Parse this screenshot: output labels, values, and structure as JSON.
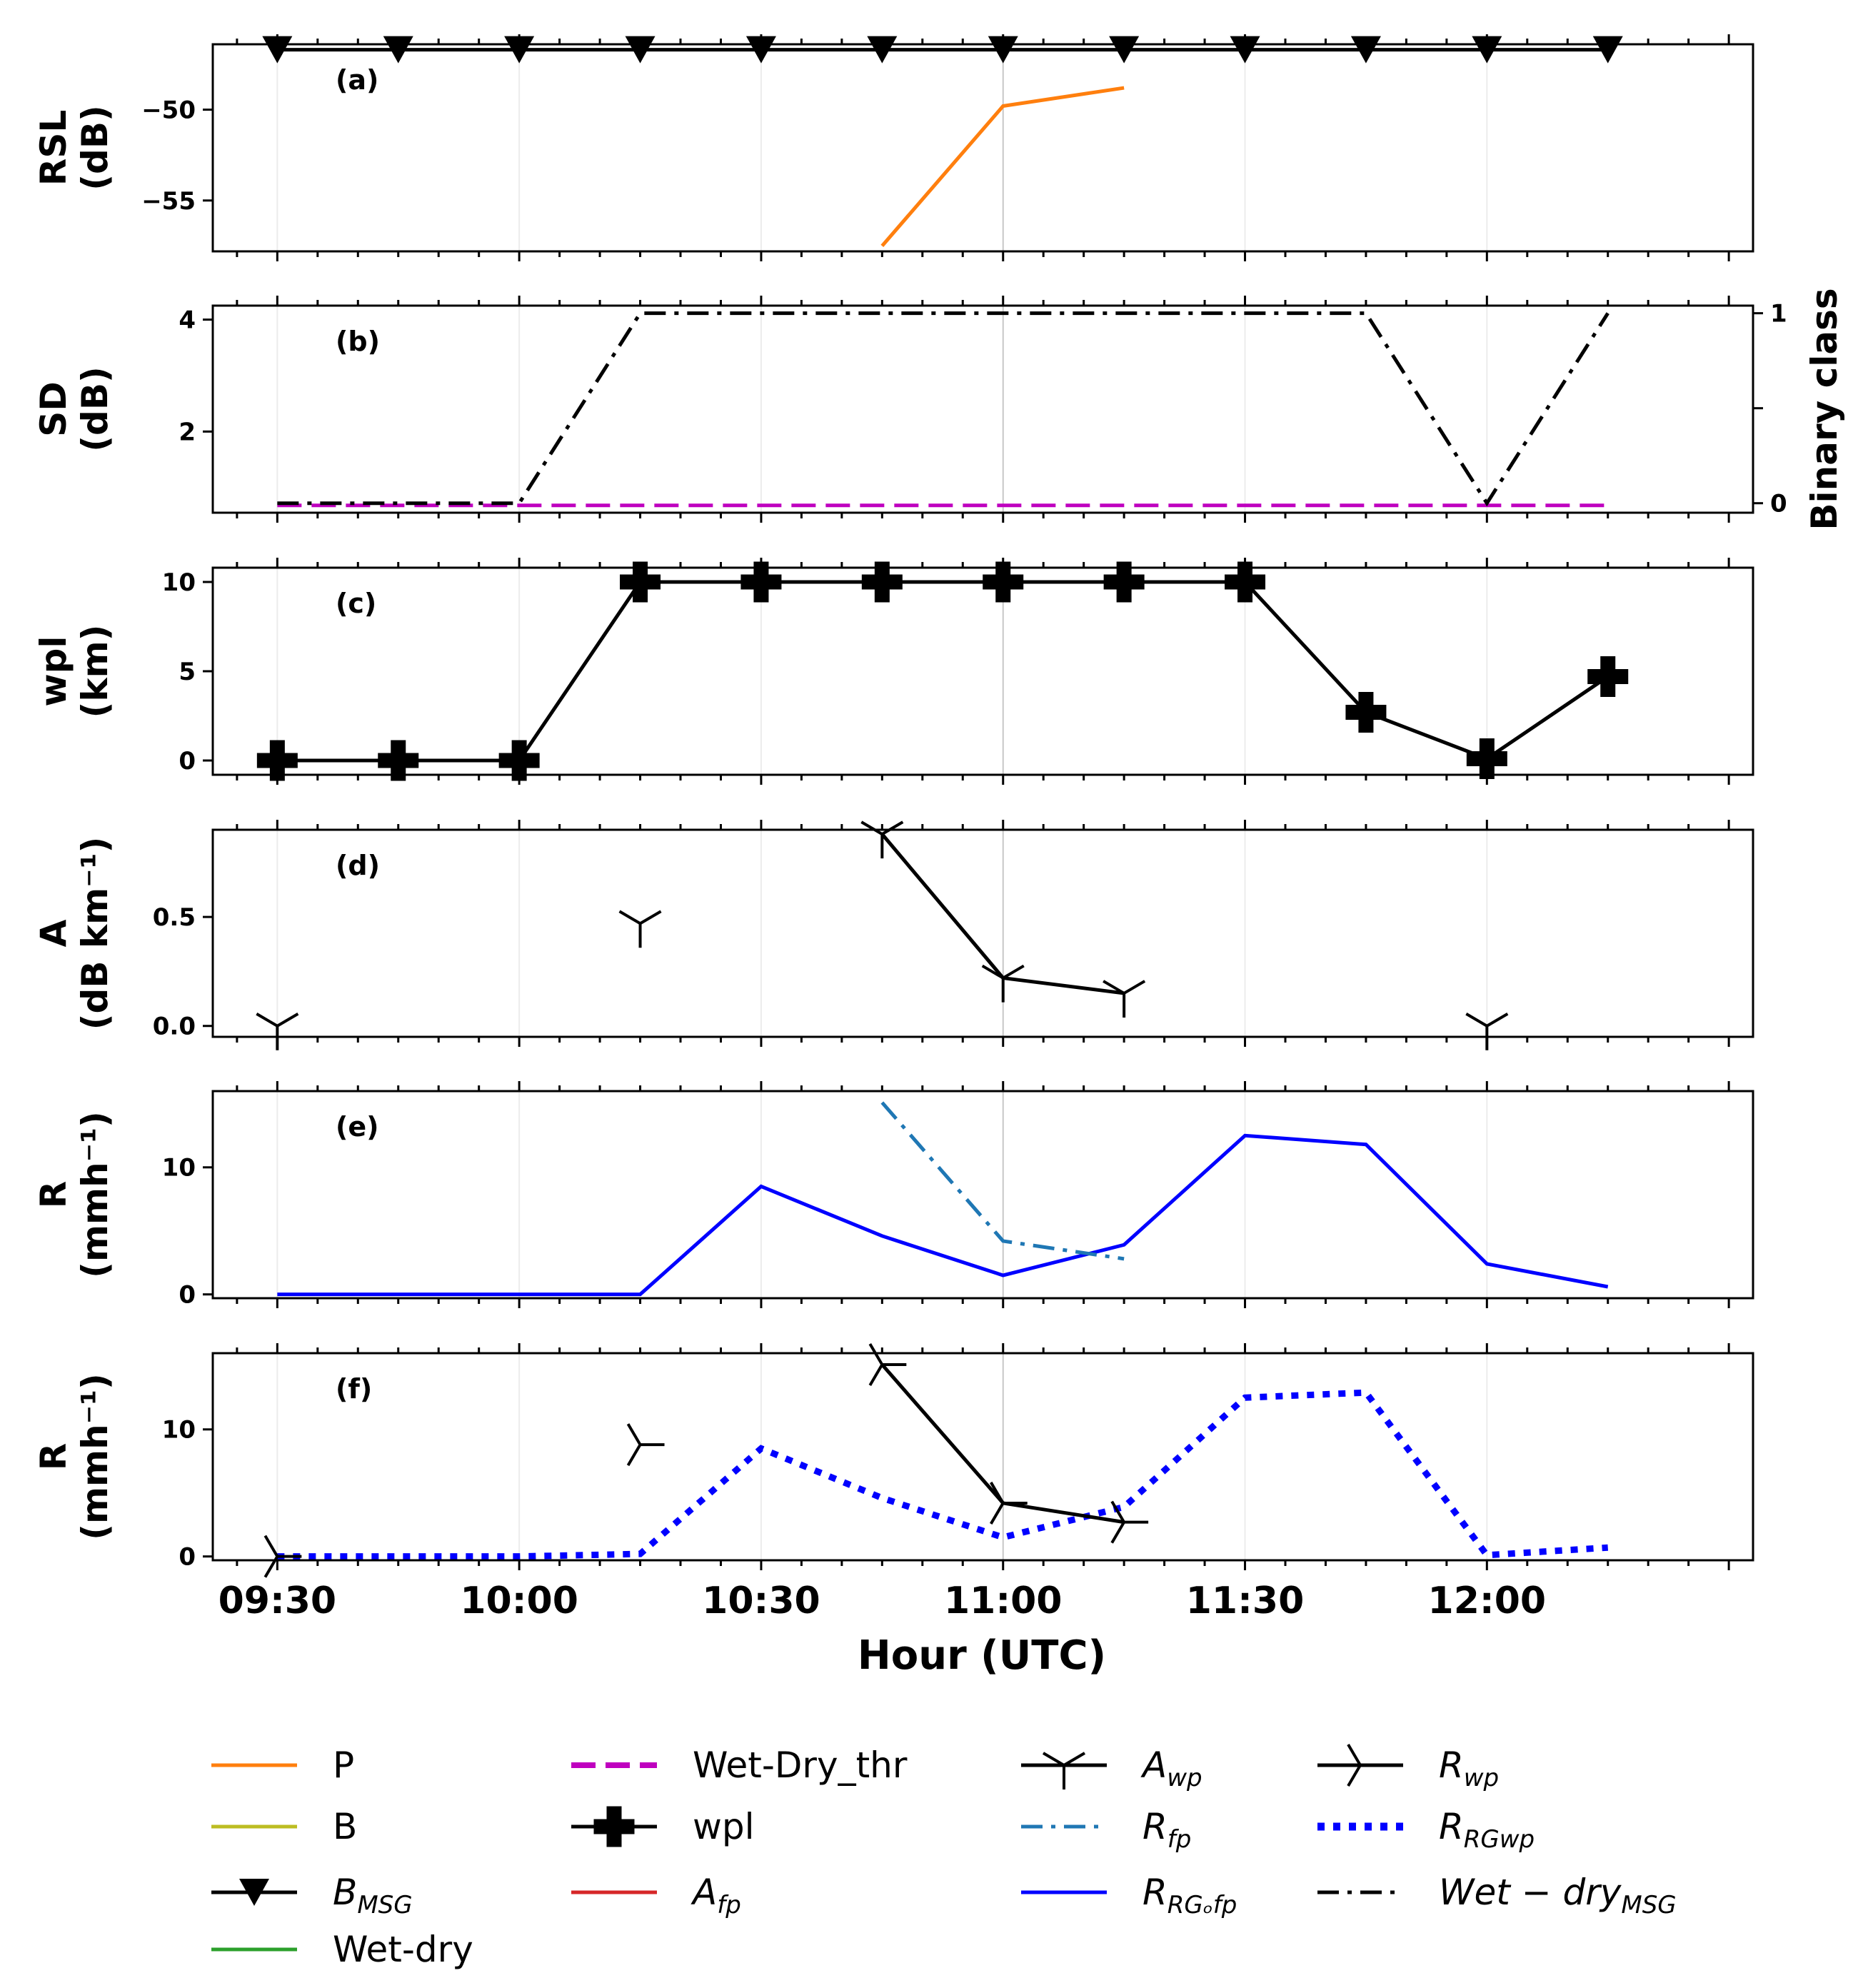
{
  "chart_data": {
    "type": "line",
    "x_ticks": [
      "09:30",
      "10:00",
      "10:30",
      "11:00",
      "11:30",
      "12:00"
    ],
    "xlabel": "Hour (UTC)",
    "x_range": [
      "09:22",
      "12:33"
    ],
    "panels": [
      {
        "id": "a",
        "label": "(a)",
        "ylabel": [
          "RSL",
          "(dB)"
        ],
        "ylim": [
          -57.8,
          -46.4
        ],
        "yticks": [
          {
            "v": -50,
            "t": "−50"
          },
          {
            "v": -55,
            "t": "−55"
          }
        ],
        "series": [
          {
            "name": "B_MSG",
            "color": "#000000",
            "style": "solid",
            "marker": "triangle-down",
            "x": [
              "09:30",
              "09:45",
              "10:00",
              "10:15",
              "10:30",
              "10:45",
              "11:00",
              "11:15",
              "11:30",
              "11:45",
              "12:00",
              "12:15"
            ],
            "y": [
              -46.7,
              -46.7,
              -46.7,
              -46.7,
              -46.7,
              -46.7,
              -46.7,
              -46.7,
              -46.7,
              -46.7,
              -46.7,
              -46.7
            ]
          },
          {
            "name": "P",
            "color": "#ff7f0e",
            "style": "solid",
            "marker": "none",
            "x": [
              "10:45",
              "11:00",
              "11:15"
            ],
            "y": [
              -57.5,
              -49.8,
              -48.8
            ]
          }
        ]
      },
      {
        "id": "b",
        "label": "(b)",
        "ylabel": [
          "SD",
          "(dB)"
        ],
        "ylim": [
          0.55,
          4.25
        ],
        "yticks": [
          {
            "v": 4,
            "t": "4"
          },
          {
            "v": 2,
            "t": "2"
          }
        ],
        "ylabel_right": "Binary class",
        "ylim_right": [
          -0.05,
          1.04
        ],
        "yticks_right": [
          {
            "v": 1,
            "t": "1"
          },
          {
            "v": 0.5,
            "t": ""
          },
          {
            "v": 0,
            "t": "0"
          }
        ],
        "series": [
          {
            "name": "Wet-Dry_thr",
            "color": "#bf00bf",
            "style": "dashed",
            "marker": "none",
            "x": [
              "09:30",
              "12:15"
            ],
            "y": [
              0.68,
              0.68
            ]
          },
          {
            "name": "Wet-dry_MSG",
            "color": "#000000",
            "style": "dashdot",
            "marker": "none",
            "axis": "right",
            "x": [
              "09:30",
              "09:45",
              "10:00",
              "10:15",
              "10:30",
              "10:45",
              "11:00",
              "11:15",
              "11:30",
              "11:45",
              "12:00",
              "12:15"
            ],
            "y": [
              0,
              0,
              0,
              1,
              1,
              1,
              1,
              1,
              1,
              1,
              0,
              1
            ]
          }
        ]
      },
      {
        "id": "c",
        "label": "(c)",
        "ylabel": [
          "wpl",
          "(km)"
        ],
        "ylim": [
          -0.8,
          10.8
        ],
        "yticks": [
          {
            "v": 10,
            "t": "10"
          },
          {
            "v": 5,
            "t": "5"
          },
          {
            "v": 0,
            "t": "0"
          }
        ],
        "series": [
          {
            "name": "wpl",
            "color": "#000000",
            "style": "solid",
            "marker": "plus",
            "x": [
              "09:30",
              "09:45",
              "10:00",
              "10:15",
              "10:30",
              "10:45",
              "11:00",
              "11:15",
              "11:30",
              "11:45",
              "12:00",
              "12:15"
            ],
            "y": [
              0,
              0,
              0,
              10,
              10,
              10,
              10,
              10,
              10,
              2.7,
              0.1,
              4.7
            ]
          }
        ]
      },
      {
        "id": "d",
        "label": "(d)",
        "ylabel": [
          "A",
          "(dB km⁻¹)"
        ],
        "ylim": [
          -0.05,
          0.9
        ],
        "yticks": [
          {
            "v": 0.5,
            "t": "0.5"
          },
          {
            "v": 0.0,
            "t": "0.0"
          }
        ],
        "series": [
          {
            "name": "A_wp",
            "color": "#000000",
            "style": "solid",
            "marker": "tri-down",
            "x": [
              "09:30",
              "10:15",
              "10:45",
              "11:00",
              "11:15",
              "12:00"
            ],
            "y": [
              0.0,
              0.47,
              0.88,
              0.22,
              0.15,
              0.0
            ],
            "connect": [
              [
                2,
                3
              ],
              [
                3,
                4
              ]
            ]
          }
        ]
      },
      {
        "id": "e",
        "label": "(e)",
        "ylabel": [
          "R",
          "(mmh⁻¹)"
        ],
        "ylim": [
          -0.3,
          16
        ],
        "yticks": [
          {
            "v": 10,
            "t": "10"
          },
          {
            "v": 0,
            "t": "0"
          }
        ],
        "series": [
          {
            "name": "R_RG_fp",
            "color": "#0000ff",
            "style": "solid",
            "marker": "none",
            "x": [
              "09:30",
              "10:00",
              "10:15",
              "10:30",
              "10:45",
              "11:00",
              "11:15",
              "11:30",
              "11:45",
              "12:00",
              "12:15"
            ],
            "y": [
              0,
              0,
              0,
              8.5,
              4.6,
              1.5,
              3.9,
              12.5,
              11.8,
              2.4,
              0.6
            ]
          },
          {
            "name": "R_fp",
            "color": "#1f77b4",
            "style": "dashdot",
            "marker": "none",
            "x": [
              "10:45",
              "11:00",
              "11:15"
            ],
            "y": [
              15.1,
              4.2,
              2.8
            ]
          }
        ]
      },
      {
        "id": "f",
        "label": "(f)",
        "ylabel": [
          "R",
          "(mmh⁻¹)"
        ],
        "ylim": [
          -0.3,
          16
        ],
        "yticks": [
          {
            "v": 10,
            "t": "10"
          },
          {
            "v": 0,
            "t": "0"
          }
        ],
        "series": [
          {
            "name": "R_RG_wp",
            "color": "#0000ff",
            "style": "dotted",
            "marker": "none",
            "x": [
              "09:30",
              "10:00",
              "10:15",
              "10:30",
              "10:45",
              "11:00",
              "11:15",
              "11:30",
              "11:45",
              "12:00",
              "12:15"
            ],
            "y": [
              0,
              0,
              0.2,
              8.5,
              4.6,
              1.5,
              3.9,
              12.5,
              12.9,
              0.1,
              0.7
            ]
          },
          {
            "name": "R_wp",
            "color": "#000000",
            "style": "solid",
            "marker": "tri-right",
            "x": [
              "09:30",
              "10:15",
              "10:45",
              "11:00",
              "11:15"
            ],
            "y": [
              0,
              8.8,
              15.1,
              4.2,
              2.7
            ],
            "connect": [
              [
                2,
                3
              ],
              [
                3,
                4
              ]
            ]
          }
        ]
      }
    ],
    "legend": [
      {
        "label": "P",
        "sub": "",
        "italic": false,
        "color": "#ff7f0e",
        "style": "solid",
        "marker": "none"
      },
      {
        "label": "B",
        "sub": "",
        "italic": false,
        "color": "#bcbd22",
        "style": "solid",
        "marker": "none"
      },
      {
        "label": "B",
        "sub": "MSG",
        "italic": true,
        "color": "#000000",
        "style": "solid",
        "marker": "triangle-down"
      },
      {
        "label": "Wet-dry",
        "sub": "",
        "italic": false,
        "color": "#2ca02c",
        "style": "solid",
        "marker": "none"
      },
      {
        "label": "Wet-Dry_thr",
        "sub": "",
        "italic": false,
        "color": "#bf00bf",
        "style": "dashed",
        "marker": "none"
      },
      {
        "label": "wpl",
        "sub": "",
        "italic": false,
        "color": "#000000",
        "style": "solid",
        "marker": "plus"
      },
      {
        "label": "A",
        "sub": "fp",
        "italic": true,
        "color": "#d62728",
        "style": "solid",
        "marker": "none"
      },
      {
        "label": "A",
        "sub": "wp",
        "italic": true,
        "color": "#000000",
        "style": "solid",
        "marker": "tri-down"
      },
      {
        "label": "R",
        "sub": "fp",
        "italic": true,
        "color": "#1f77b4",
        "style": "dashdot",
        "marker": "none"
      },
      {
        "label": "R",
        "sub": "RGₒfp",
        "italic": true,
        "color": "#0000ff",
        "style": "solid",
        "marker": "none"
      },
      {
        "label": "R",
        "sub": "wp",
        "italic": true,
        "color": "#000000",
        "style": "solid",
        "marker": "tri-right"
      },
      {
        "label": "R",
        "sub": "RGwp",
        "italic": true,
        "color": "#0000ff",
        "style": "dotted",
        "marker": "none"
      },
      {
        "label": "Wet − dry",
        "sub": "MSG",
        "italic": true,
        "color": "#000000",
        "style": "dashdot",
        "marker": "none"
      }
    ]
  }
}
